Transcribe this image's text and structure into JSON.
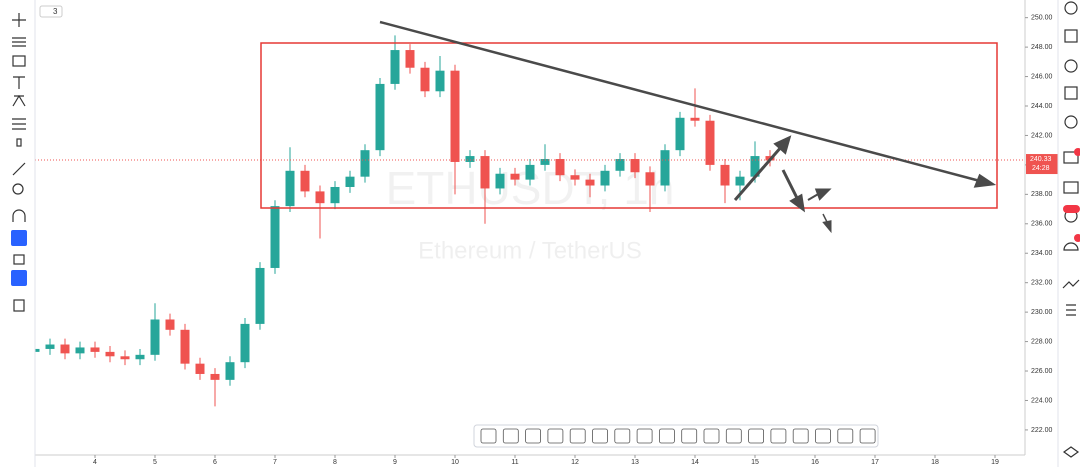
{
  "chart_data": {
    "type": "candlestick",
    "watermark": "ETHUSDT, 1h",
    "watermark_subtitle": "Ethereum / TetherUS",
    "interval_badge": "3",
    "x": [
      3.0,
      3.25,
      3.5,
      3.75,
      4.0,
      4.25,
      4.5,
      4.75,
      5.0,
      5.25,
      5.5,
      5.75,
      6.0,
      6.25,
      6.5,
      6.75,
      7.0,
      7.25,
      7.5,
      7.75,
      8.0,
      8.25,
      8.5,
      8.75,
      9.0,
      9.25,
      9.5,
      9.75,
      10.0,
      10.25,
      10.5,
      10.75,
      11.0,
      11.25,
      11.5,
      11.75,
      12.0,
      12.25,
      12.5,
      12.75,
      13.0,
      13.25,
      13.5,
      13.75,
      14.0,
      14.25,
      14.5,
      14.75,
      15.0,
      15.25
    ],
    "open": [
      227.3,
      227.5,
      227.8,
      227.2,
      227.6,
      227.3,
      227.0,
      226.8,
      227.1,
      229.5,
      228.8,
      226.5,
      225.8,
      225.4,
      226.6,
      229.2,
      233.0,
      237.2,
      239.6,
      238.2,
      237.4,
      238.5,
      239.2,
      241.0,
      245.5,
      247.8,
      246.6,
      245.0,
      246.4,
      240.2,
      240.6,
      238.4,
      239.4,
      239.0,
      240.0,
      240.4,
      239.3,
      239.0,
      238.6,
      239.6,
      240.4,
      239.5,
      238.6,
      241.0,
      243.2,
      243.0,
      240.0,
      238.6,
      239.2,
      240.6
    ],
    "high": [
      227.9,
      228.2,
      228.2,
      228.0,
      228.0,
      227.7,
      227.4,
      227.5,
      230.6,
      229.9,
      229.2,
      226.9,
      226.2,
      227.0,
      229.6,
      233.4,
      237.6,
      241.2,
      240.0,
      238.6,
      238.9,
      239.6,
      241.4,
      245.9,
      248.8,
      248.2,
      247.0,
      247.4,
      246.8,
      241.0,
      241.0,
      239.8,
      239.8,
      240.4,
      241.4,
      240.8,
      239.7,
      239.4,
      240.0,
      240.8,
      240.8,
      239.9,
      241.4,
      243.6,
      245.2,
      243.4,
      240.4,
      239.6,
      241.6,
      241.0
    ],
    "low": [
      226.9,
      227.1,
      226.8,
      226.8,
      226.9,
      226.6,
      226.4,
      226.4,
      226.7,
      228.4,
      226.1,
      225.4,
      223.6,
      225.0,
      226.2,
      228.8,
      232.6,
      236.8,
      237.8,
      235.0,
      237.0,
      238.1,
      238.8,
      240.6,
      245.1,
      246.2,
      244.6,
      244.6,
      238.0,
      239.8,
      236.0,
      238.0,
      238.6,
      238.6,
      239.6,
      238.9,
      238.6,
      237.8,
      238.2,
      239.2,
      239.1,
      236.8,
      238.2,
      240.6,
      242.6,
      239.6,
      237.4,
      237.6,
      238.8,
      239.9
    ],
    "close": [
      227.5,
      227.8,
      227.2,
      227.6,
      227.3,
      227.0,
      226.8,
      227.1,
      229.5,
      228.8,
      226.5,
      225.8,
      225.4,
      226.6,
      229.2,
      233.0,
      237.2,
      239.6,
      238.2,
      237.4,
      238.5,
      239.2,
      241.0,
      245.5,
      247.8,
      246.6,
      245.0,
      246.4,
      240.2,
      240.6,
      238.4,
      239.4,
      239.0,
      240.0,
      240.4,
      239.3,
      239.0,
      238.6,
      239.6,
      240.4,
      239.5,
      238.6,
      241.0,
      243.2,
      243.0,
      240.0,
      238.6,
      239.2,
      240.6,
      240.3
    ],
    "up_color": "#26a69a",
    "down_color": "#ef5350",
    "last_price": 240.33,
    "countdown": "24:28",
    "xlim": [
      3,
      19.5
    ],
    "xticks": [
      4,
      5,
      6,
      7,
      8,
      9,
      10,
      11,
      12,
      13,
      14,
      15,
      16,
      17,
      18,
      19
    ],
    "ylim": [
      220.5,
      251.2
    ],
    "yticks": [
      {
        "value": 222,
        "label": "222.00"
      },
      {
        "value": 224,
        "label": "224.00"
      },
      {
        "value": 226,
        "label": "226.00"
      },
      {
        "value": 228,
        "label": "228.00"
      },
      {
        "value": 230,
        "label": "230.00"
      },
      {
        "value": 232,
        "label": "232.00"
      },
      {
        "value": 234,
        "label": "234.00"
      },
      {
        "value": 236,
        "label": "236.00"
      },
      {
        "value": 238,
        "label": "238.00"
      },
      {
        "value": 240,
        "label": "240.00"
      },
      {
        "value": 242,
        "label": "242.00"
      },
      {
        "value": 244,
        "label": "244.00"
      },
      {
        "value": 246,
        "label": "246.00"
      },
      {
        "value": 248,
        "label": "248.00"
      },
      {
        "value": 250,
        "label": "250.00"
      }
    ]
  }
}
